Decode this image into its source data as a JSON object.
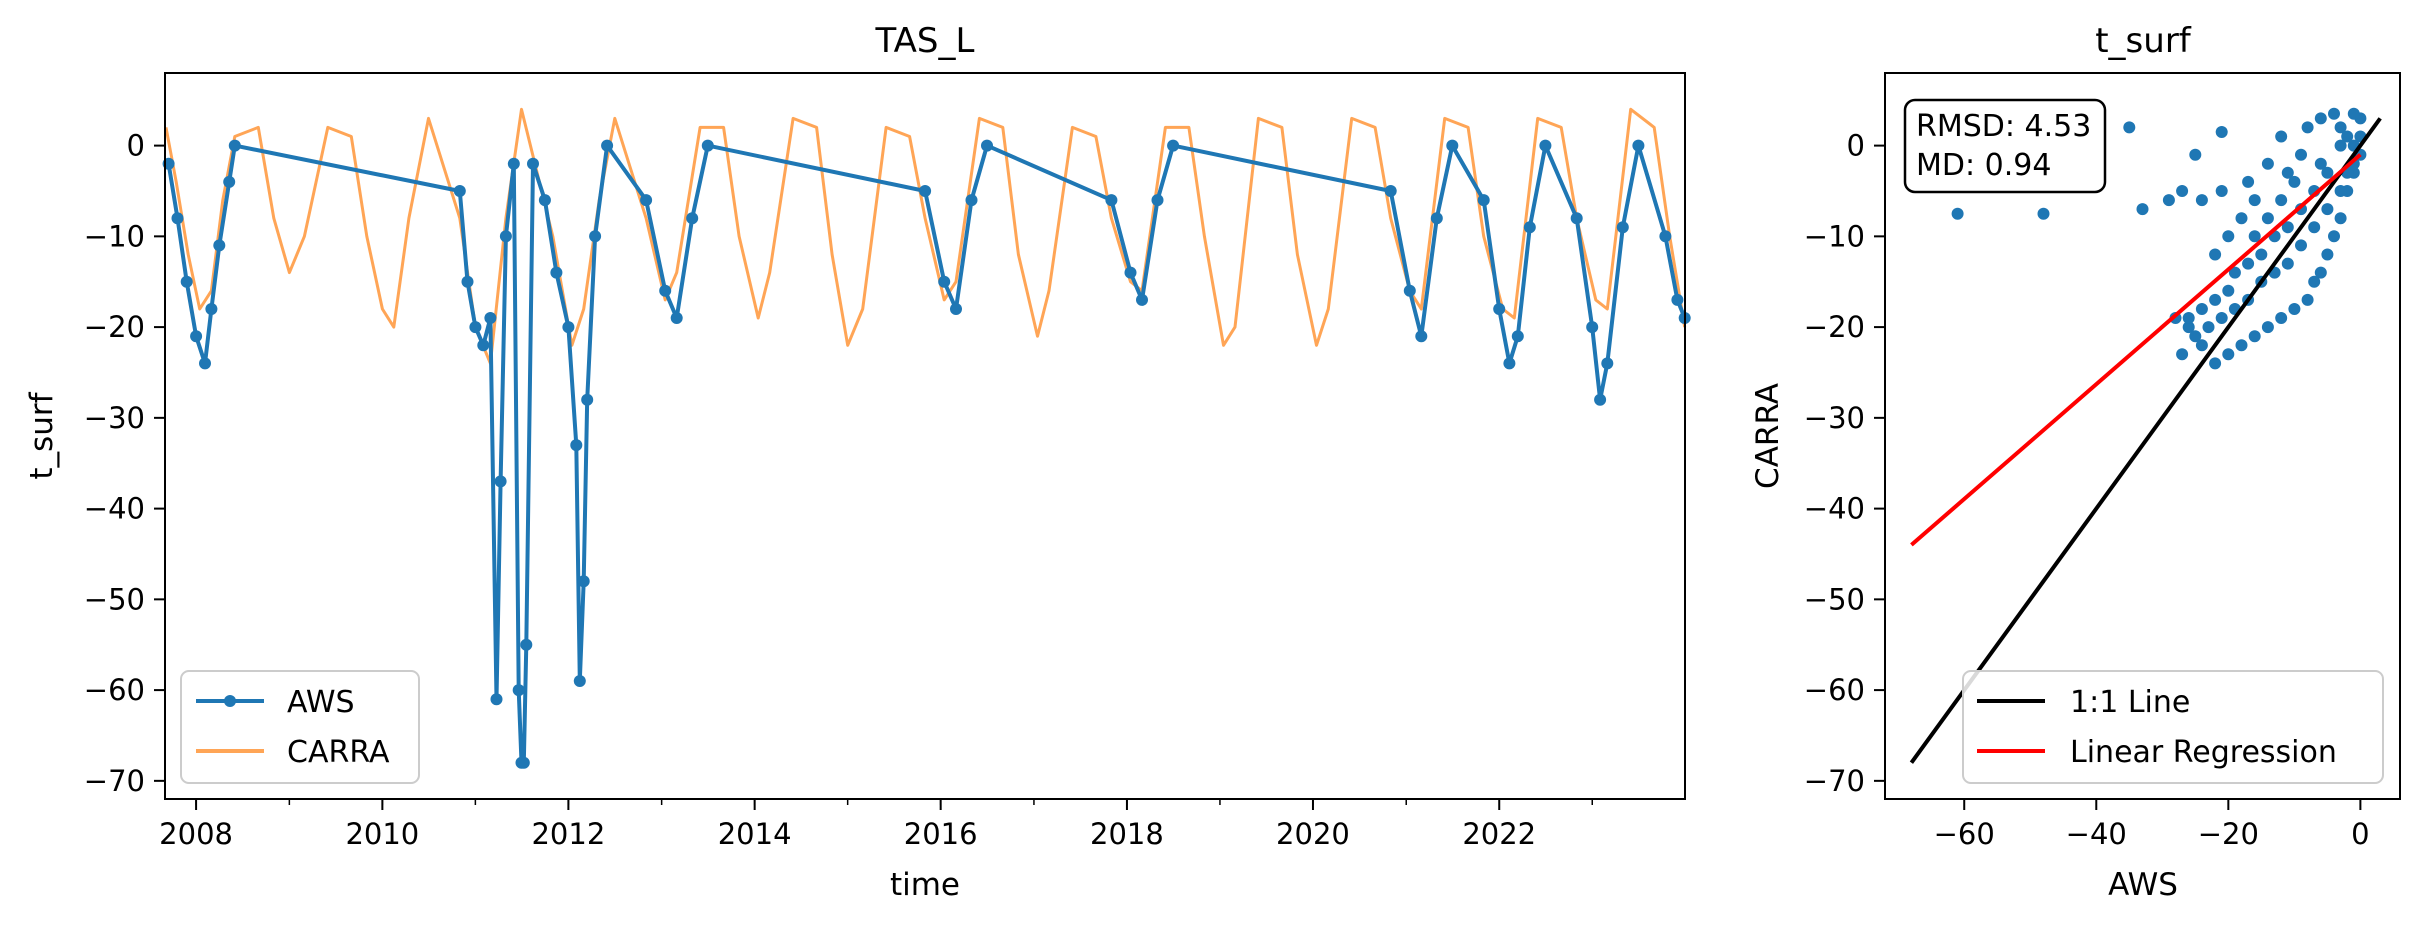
{
  "chart_data": [
    {
      "type": "line",
      "title": "TAS_L",
      "xlabel": "time",
      "ylabel": "t_surf",
      "xlim": [
        "2007-09-01",
        "2023-12-31"
      ],
      "ylim": [
        -72,
        8
      ],
      "x_ticks": [
        "2008",
        "2010",
        "2012",
        "2014",
        "2016",
        "2018",
        "2020",
        "2022"
      ],
      "y_ticks": [
        0,
        -10,
        -20,
        -30,
        -40,
        -50,
        -60,
        -70
      ],
      "legend_position": "lower-left",
      "grid": false,
      "series": [
        {
          "name": "AWS",
          "color": "#1f77b4",
          "marker": "circle",
          "points": [
            [
              "2007-09-15",
              -2
            ],
            [
              "2007-10-20",
              -8
            ],
            [
              "2007-11-25",
              -15
            ],
            [
              "2008-01-01",
              -21
            ],
            [
              "2008-02-05",
              -24
            ],
            [
              "2008-03-01",
              -18
            ],
            [
              "2008-04-01",
              -11
            ],
            [
              "2008-05-10",
              -4
            ],
            [
              "2008-06-01",
              0
            ],
            [
              "2010-11-01",
              -5
            ],
            [
              "2010-12-01",
              -15
            ],
            [
              "2011-01-01",
              -20
            ],
            [
              "2011-02-01",
              -22
            ],
            [
              "2011-03-01",
              -19
            ],
            [
              "2011-03-25",
              -61
            ],
            [
              "2011-04-10",
              -37
            ],
            [
              "2011-05-01",
              -10
            ],
            [
              "2011-06-01",
              -2
            ],
            [
              "2011-06-20",
              -60
            ],
            [
              "2011-07-01",
              -68
            ],
            [
              "2011-07-10",
              -68
            ],
            [
              "2011-07-20",
              -55
            ],
            [
              "2011-08-15",
              -2
            ],
            [
              "2011-10-01",
              -6
            ],
            [
              "2011-11-15",
              -14
            ],
            [
              "2012-01-01",
              -20
            ],
            [
              "2012-02-01",
              -33
            ],
            [
              "2012-02-15",
              -59
            ],
            [
              "2012-03-01",
              -48
            ],
            [
              "2012-03-15",
              -28
            ],
            [
              "2012-04-15",
              -10
            ],
            [
              "2012-06-01",
              0
            ],
            [
              "2012-11-01",
              -6
            ],
            [
              "2013-01-15",
              -16
            ],
            [
              "2013-03-01",
              -19
            ],
            [
              "2013-05-01",
              -8
            ],
            [
              "2013-07-01",
              0
            ],
            [
              "2015-11-01",
              -5
            ],
            [
              "2016-01-15",
              -15
            ],
            [
              "2016-03-01",
              -18
            ],
            [
              "2016-05-01",
              -6
            ],
            [
              "2016-07-01",
              0
            ],
            [
              "2017-11-01",
              -6
            ],
            [
              "2018-01-15",
              -14
            ],
            [
              "2018-03-01",
              -17
            ],
            [
              "2018-05-01",
              -6
            ],
            [
              "2018-07-01",
              0
            ],
            [
              "2020-11-01",
              -5
            ],
            [
              "2021-01-15",
              -16
            ],
            [
              "2021-03-01",
              -21
            ],
            [
              "2021-05-01",
              -8
            ],
            [
              "2021-07-01",
              0
            ],
            [
              "2021-11-01",
              -6
            ],
            [
              "2022-01-01",
              -18
            ],
            [
              "2022-02-10",
              -24
            ],
            [
              "2022-03-15",
              -21
            ],
            [
              "2022-05-01",
              -9
            ],
            [
              "2022-07-01",
              0
            ],
            [
              "2022-11-01",
              -8
            ],
            [
              "2023-01-01",
              -20
            ],
            [
              "2023-02-01",
              -28
            ],
            [
              "2023-03-01",
              -24
            ],
            [
              "2023-05-01",
              -9
            ],
            [
              "2023-07-01",
              0
            ],
            [
              "2023-10-15",
              -10
            ],
            [
              "2023-12-01",
              -17
            ],
            [
              "2023-12-30",
              -19
            ]
          ]
        },
        {
          "name": "CARRA",
          "color": "#ff7f0e",
          "points": [
            [
              "2007-09-05",
              2
            ],
            [
              "2007-10-15",
              -4
            ],
            [
              "2007-12-01",
              -12
            ],
            [
              "2008-01-15",
              -18
            ],
            [
              "2008-03-01",
              -16
            ],
            [
              "2008-04-15",
              -6
            ],
            [
              "2008-06-01",
              1
            ],
            [
              "2008-09-01",
              2
            ],
            [
              "2008-11-01",
              -8
            ],
            [
              "2009-01-01",
              -14
            ],
            [
              "2009-03-01",
              -10
            ],
            [
              "2009-06-01",
              2
            ],
            [
              "2009-09-01",
              1
            ],
            [
              "2009-11-01",
              -10
            ],
            [
              "2010-01-01",
              -18
            ],
            [
              "2010-02-15",
              -20
            ],
            [
              "2010-04-15",
              -8
            ],
            [
              "2010-07-01",
              3
            ],
            [
              "2010-11-01",
              -8
            ],
            [
              "2011-01-01",
              -20
            ],
            [
              "2011-03-01",
              -24
            ],
            [
              "2011-05-01",
              -8
            ],
            [
              "2011-07-01",
              4
            ],
            [
              "2011-11-01",
              -10
            ],
            [
              "2012-01-15",
              -22
            ],
            [
              "2012-03-01",
              -18
            ],
            [
              "2012-05-01",
              -6
            ],
            [
              "2012-07-01",
              3
            ],
            [
              "2012-11-01",
              -8
            ],
            [
              "2013-01-15",
              -17
            ],
            [
              "2013-03-01",
              -14
            ],
            [
              "2013-06-01",
              2
            ],
            [
              "2013-09-01",
              2
            ],
            [
              "2013-11-01",
              -10
            ],
            [
              "2014-01-15",
              -19
            ],
            [
              "2014-03-01",
              -14
            ],
            [
              "2014-06-01",
              3
            ],
            [
              "2014-09-01",
              2
            ],
            [
              "2014-11-01",
              -12
            ],
            [
              "2015-01-01",
              -22
            ],
            [
              "2015-03-01",
              -18
            ],
            [
              "2015-06-01",
              2
            ],
            [
              "2015-09-01",
              1
            ],
            [
              "2015-11-01",
              -8
            ],
            [
              "2016-01-15",
              -17
            ],
            [
              "2016-03-01",
              -15
            ],
            [
              "2016-06-01",
              3
            ],
            [
              "2016-09-01",
              2
            ],
            [
              "2016-11-01",
              -12
            ],
            [
              "2017-01-15",
              -21
            ],
            [
              "2017-03-01",
              -16
            ],
            [
              "2017-06-01",
              2
            ],
            [
              "2017-09-01",
              1
            ],
            [
              "2017-11-01",
              -8
            ],
            [
              "2018-01-15",
              -15
            ],
            [
              "2018-03-01",
              -16
            ],
            [
              "2018-06-01",
              2
            ],
            [
              "2018-09-01",
              2
            ],
            [
              "2018-11-01",
              -10
            ],
            [
              "2019-01-15",
              -22
            ],
            [
              "2019-03-01",
              -20
            ],
            [
              "2019-06-01",
              3
            ],
            [
              "2019-09-01",
              2
            ],
            [
              "2019-11-01",
              -12
            ],
            [
              "2020-01-15",
              -22
            ],
            [
              "2020-03-01",
              -18
            ],
            [
              "2020-06-01",
              3
            ],
            [
              "2020-09-01",
              2
            ],
            [
              "2020-11-01",
              -8
            ],
            [
              "2021-01-15",
              -16
            ],
            [
              "2021-03-01",
              -18
            ],
            [
              "2021-06-01",
              3
            ],
            [
              "2021-09-01",
              2
            ],
            [
              "2021-11-01",
              -10
            ],
            [
              "2022-01-15",
              -18
            ],
            [
              "2022-03-01",
              -19
            ],
            [
              "2022-06-01",
              3
            ],
            [
              "2022-09-01",
              2
            ],
            [
              "2022-11-01",
              -8
            ],
            [
              "2023-01-15",
              -17
            ],
            [
              "2023-03-01",
              -18
            ],
            [
              "2023-06-01",
              4
            ],
            [
              "2023-09-01",
              2
            ],
            [
              "2023-11-01",
              -10
            ],
            [
              "2023-12-30",
              -20
            ]
          ]
        }
      ]
    },
    {
      "type": "scatter",
      "title": "t_surf",
      "xlabel": "AWS",
      "ylabel": "CARRA",
      "xlim": [
        -72,
        6
      ],
      "ylim": [
        -72,
        8
      ],
      "x_ticks": [
        -60,
        -40,
        -20,
        0
      ],
      "y_ticks": [
        0,
        -10,
        -20,
        -30,
        -40,
        -50,
        -60,
        -70
      ],
      "legend_position": "lower-right",
      "stats_box": [
        "RMSD: 4.53",
        "MD: 0.94"
      ],
      "grid": false,
      "series": [
        {
          "name": "",
          "color": "#1f77b4",
          "points": [
            [
              -61,
              -7.5
            ],
            [
              -48,
              -7.5
            ],
            [
              -35,
              2
            ],
            [
              -33,
              -7
            ],
            [
              -29,
              -6
            ],
            [
              -27,
              -5
            ],
            [
              -24,
              -6
            ],
            [
              -21,
              -5
            ],
            [
              -22,
              -12
            ],
            [
              -20,
              -10
            ],
            [
              -18,
              -8
            ],
            [
              -17,
              -4
            ],
            [
              -14,
              -2
            ],
            [
              -12,
              1
            ],
            [
              -21,
              1.5
            ],
            [
              -25,
              -1
            ],
            [
              -16,
              -6
            ],
            [
              -11,
              -3
            ],
            [
              -9,
              -1
            ],
            [
              -8,
              2
            ],
            [
              -6,
              3
            ],
            [
              -4,
              3.5
            ],
            [
              -3,
              2
            ],
            [
              -2,
              1
            ],
            [
              -1,
              0
            ],
            [
              -1,
              -3
            ],
            [
              -2,
              -5
            ],
            [
              -3,
              -8
            ],
            [
              -4,
              -10
            ],
            [
              -5,
              -12
            ],
            [
              -6,
              -14
            ],
            [
              -7,
              -15
            ],
            [
              -8,
              -17
            ],
            [
              -10,
              -18
            ],
            [
              -12,
              -19
            ],
            [
              -14,
              -20
            ],
            [
              -16,
              -21
            ],
            [
              -18,
              -22
            ],
            [
              -20,
              -23
            ],
            [
              -22,
              -24
            ],
            [
              -24,
              -22
            ],
            [
              -26,
              -20
            ],
            [
              -28,
              -19
            ],
            [
              -27,
              -23
            ],
            [
              -25,
              -21
            ],
            [
              -23,
              -20
            ],
            [
              -21,
              -19
            ],
            [
              -19,
              -18
            ],
            [
              -17,
              -17
            ],
            [
              -15,
              -15
            ],
            [
              -13,
              -14
            ],
            [
              -11,
              -13
            ],
            [
              -9,
              -11
            ],
            [
              -7,
              -9
            ],
            [
              -5,
              -7
            ],
            [
              -3,
              -5
            ],
            [
              -2,
              -3
            ],
            [
              -1,
              -2
            ],
            [
              0,
              -1
            ],
            [
              0,
              1
            ],
            [
              0,
              3
            ],
            [
              -1,
              3.5
            ],
            [
              -3,
              0
            ],
            [
              -5,
              -3
            ],
            [
              -7,
              -5
            ],
            [
              -9,
              -7
            ],
            [
              -11,
              -9
            ],
            [
              -13,
              -10
            ],
            [
              -15,
              -12
            ],
            [
              -17,
              -13
            ],
            [
              -19,
              -14
            ],
            [
              -20,
              -16
            ],
            [
              -22,
              -17
            ],
            [
              -24,
              -18
            ],
            [
              -26,
              -19
            ],
            [
              -10,
              -4
            ],
            [
              -12,
              -6
            ],
            [
              -14,
              -8
            ],
            [
              -16,
              -10
            ],
            [
              -6,
              -2
            ]
          ]
        }
      ],
      "lines": [
        {
          "name": "1:1 Line",
          "color": "#000000",
          "x": [
            -68,
            3
          ],
          "y": [
            -68,
            3
          ]
        },
        {
          "name": "Linear Regression",
          "color": "#ff0000",
          "x": [
            -68,
            0
          ],
          "y": [
            -44,
            -1
          ]
        }
      ]
    }
  ]
}
